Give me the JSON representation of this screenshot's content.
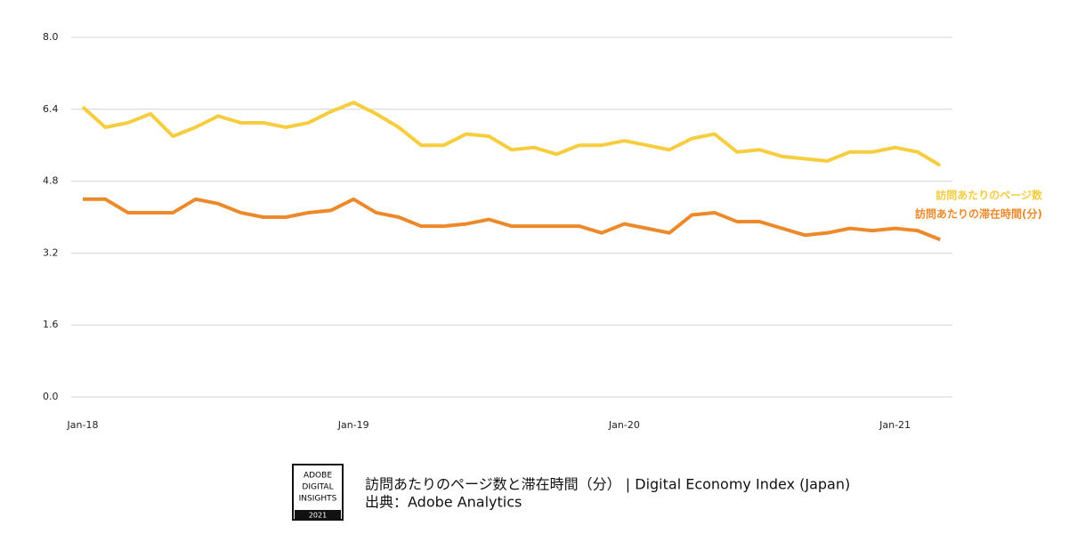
{
  "chart_data": {
    "type": "line",
    "categories": [
      "Jan-18",
      null,
      null,
      null,
      null,
      null,
      null,
      null,
      null,
      null,
      null,
      null,
      "Jan-19",
      null,
      null,
      null,
      null,
      null,
      null,
      null,
      null,
      null,
      null,
      null,
      "Jan-20",
      null,
      null,
      null,
      null,
      null,
      null,
      null,
      null,
      null,
      null,
      null,
      "Jan-21",
      null,
      null
    ],
    "series": [
      {
        "name": "訪問あたりのページ数",
        "color": "#f5cd3f",
        "values": [
          6.45,
          6.0,
          6.1,
          6.3,
          5.8,
          6.0,
          6.25,
          6.1,
          6.1,
          6.0,
          6.1,
          6.35,
          6.55,
          6.3,
          6.0,
          5.6,
          5.6,
          5.85,
          5.8,
          5.5,
          5.55,
          5.4,
          5.6,
          5.6,
          5.7,
          5.6,
          5.5,
          5.75,
          5.85,
          5.45,
          5.5,
          5.35,
          5.3,
          5.25,
          5.45,
          5.45,
          5.55,
          5.45,
          5.15
        ]
      },
      {
        "name": "訪問あたりの滞在時間(分)",
        "color": "#ec8a2b",
        "values": [
          4.4,
          4.4,
          4.1,
          4.1,
          4.1,
          4.4,
          4.3,
          4.1,
          4.0,
          4.0,
          4.1,
          4.15,
          4.4,
          4.1,
          4.0,
          3.8,
          3.8,
          3.85,
          3.95,
          3.8,
          3.8,
          3.8,
          3.8,
          3.65,
          3.85,
          3.75,
          3.65,
          4.05,
          4.1,
          3.9,
          3.9,
          3.75,
          3.6,
          3.65,
          3.75,
          3.7,
          3.75,
          3.7,
          3.5
        ]
      }
    ],
    "ylim": [
      0,
      8
    ],
    "yticks": [
      {
        "value": 0,
        "label": "0.0"
      },
      {
        "value": 1.6,
        "label": "1.6"
      },
      {
        "value": 3.2,
        "label": "3.2"
      },
      {
        "value": 4.8,
        "label": "4.8"
      },
      {
        "value": 6.4,
        "label": "6.4"
      },
      {
        "value": 8,
        "label": "8.0"
      }
    ],
    "grid": true
  },
  "footer": {
    "badge": [
      "ADOBE",
      "DIGITAL",
      "INSIGHTS"
    ],
    "badge_year": "2021",
    "title": "訪問あたりのページ数と滞在時間（分）  | Digital Economy Index (Japan)",
    "source": "出典：Adobe Analytics"
  }
}
